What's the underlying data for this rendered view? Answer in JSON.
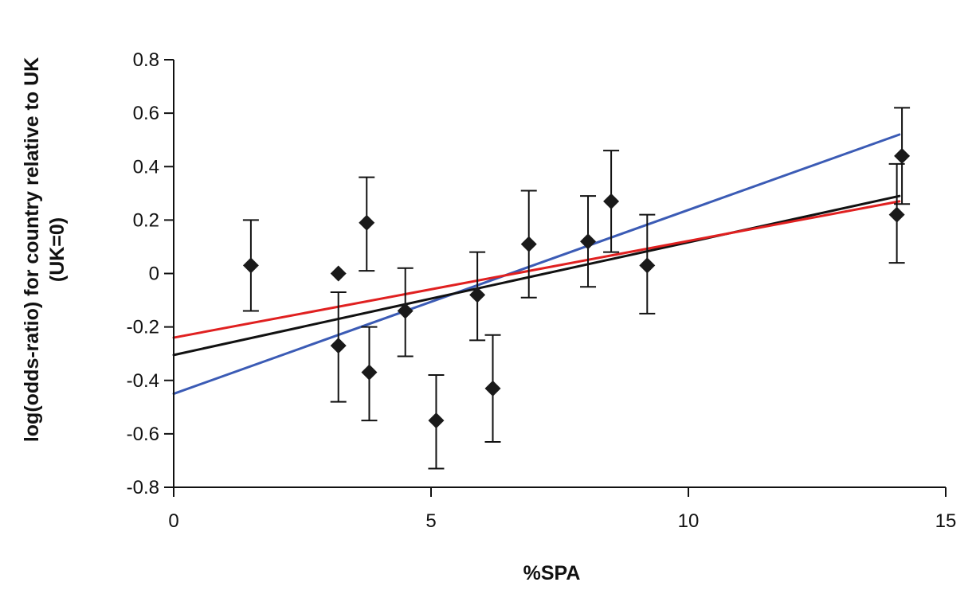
{
  "chart_data": {
    "type": "scatter",
    "xlabel": "%SPA",
    "ylabel_lines": [
      "log(odds-ratio) for country relative to UK",
      "(UK=0)"
    ],
    "xlim": [
      0,
      15
    ],
    "ylim": [
      -0.8,
      0.8
    ],
    "x_ticks": [
      0,
      5,
      10,
      15
    ],
    "y_ticks": [
      -0.8,
      -0.6,
      -0.4,
      -0.2,
      0,
      0.2,
      0.4,
      0.6,
      0.8
    ],
    "x_tick_labels": [
      "0",
      "5",
      "10",
      "15"
    ],
    "y_tick_labels": [
      "-0.8",
      "-0.6",
      "-0.4",
      "-0.2",
      "0",
      "0.2",
      "0.4",
      "0.6",
      "0.8"
    ],
    "grid": false,
    "marker": "diamond",
    "points": [
      {
        "x": 1.5,
        "y": 0.03,
        "low": -0.14,
        "high": 0.2
      },
      {
        "x": 3.2,
        "y": 0.0,
        "low": null,
        "high": null
      },
      {
        "x": 3.2,
        "y": -0.27,
        "low": -0.48,
        "high": -0.07
      },
      {
        "x": 3.75,
        "y": 0.19,
        "low": 0.01,
        "high": 0.36
      },
      {
        "x": 3.8,
        "y": -0.37,
        "low": -0.55,
        "high": -0.2
      },
      {
        "x": 4.5,
        "y": -0.14,
        "low": -0.31,
        "high": 0.02
      },
      {
        "x": 5.1,
        "y": -0.55,
        "low": -0.73,
        "high": -0.38
      },
      {
        "x": 5.9,
        "y": -0.08,
        "low": -0.25,
        "high": 0.08
      },
      {
        "x": 6.2,
        "y": -0.43,
        "low": -0.63,
        "high": -0.23
      },
      {
        "x": 6.9,
        "y": 0.11,
        "low": -0.09,
        "high": 0.31
      },
      {
        "x": 8.05,
        "y": 0.12,
        "low": -0.05,
        "high": 0.29
      },
      {
        "x": 8.5,
        "y": 0.27,
        "low": 0.08,
        "high": 0.46
      },
      {
        "x": 9.2,
        "y": 0.03,
        "low": -0.15,
        "high": 0.22
      },
      {
        "x": 14.05,
        "y": 0.22,
        "low": 0.04,
        "high": 0.41
      },
      {
        "x": 14.15,
        "y": 0.44,
        "low": 0.26,
        "high": 0.62
      }
    ],
    "fit_lines": [
      {
        "color": "#3b5bb5",
        "x": [
          0,
          14.1
        ],
        "y": [
          -0.45,
          0.52
        ]
      },
      {
        "color": "#111111",
        "x": [
          0,
          14.1
        ],
        "y": [
          -0.305,
          0.29
        ]
      },
      {
        "color": "#e02020",
        "x": [
          0,
          14.1
        ],
        "y": [
          -0.24,
          0.27
        ]
      }
    ],
    "colors": {
      "marker": "#1a1a1a",
      "axis": "#111111",
      "errorbar": "#111111"
    }
  }
}
